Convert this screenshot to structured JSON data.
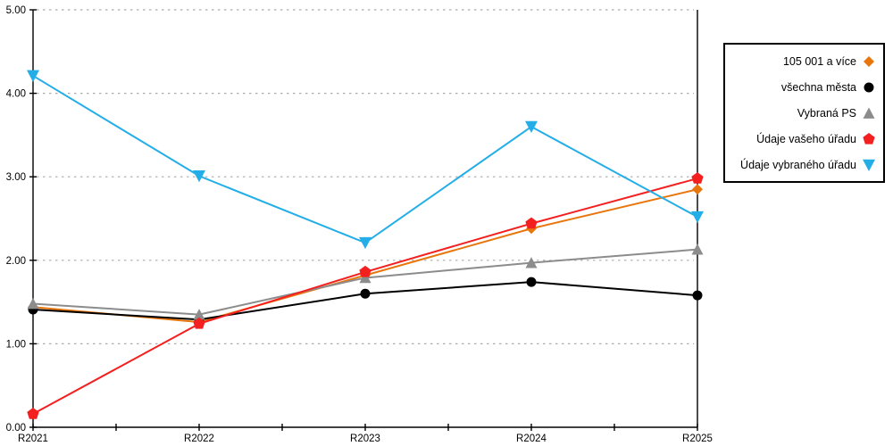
{
  "chart_data": {
    "type": "line",
    "title": "",
    "xlabel": "",
    "ylabel": "",
    "categories": [
      "R2021",
      "R2022",
      "R2023",
      "R2024",
      "R2025"
    ],
    "y_axis": {
      "min": 0,
      "max": 5,
      "step": 1,
      "tick_labels": [
        "0.00",
        "1.00",
        "2.00",
        "3.00",
        "4.00",
        "5.00"
      ]
    },
    "grid": "horizontal-dashed",
    "gridline_color": "#ababab",
    "axis_color": "#000000",
    "legend_position": "right",
    "series": [
      {
        "name": "105 001 a více",
        "color": "#e8760d",
        "marker": "diamond",
        "values": [
          1.44,
          1.26,
          1.82,
          2.38,
          2.85
        ]
      },
      {
        "name": "všechna města",
        "color": "#000000",
        "marker": "circle",
        "values": [
          1.41,
          1.29,
          1.6,
          1.74,
          1.58
        ]
      },
      {
        "name": "Vybraná PS",
        "color": "#8c8c8c",
        "marker": "triangle-up",
        "values": [
          1.48,
          1.35,
          1.79,
          1.97,
          2.13
        ]
      },
      {
        "name": "Údaje vašeho úřadu",
        "color": "#f42020",
        "marker": "pentagon",
        "values": [
          0.16,
          1.24,
          1.86,
          2.44,
          2.98
        ]
      },
      {
        "name": "Údaje vybraného úřadu",
        "color": "#23aee8",
        "marker": "triangle-down",
        "values": [
          4.21,
          3.01,
          2.21,
          3.6,
          2.52
        ]
      }
    ]
  }
}
